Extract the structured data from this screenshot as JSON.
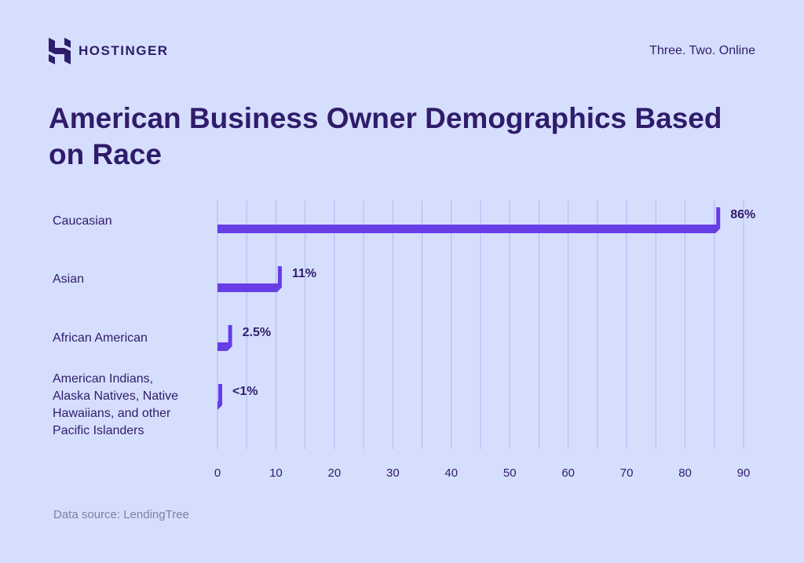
{
  "brand": {
    "name": "HOSTINGER",
    "tagline": "Three. Two. Online"
  },
  "source": "Data source: LendingTree",
  "colors": {
    "bar": "#673de6",
    "grid": "#b4b4f5",
    "text": "#2f1c6a"
  },
  "chart_data": {
    "type": "bar",
    "orientation": "horizontal",
    "title": "American Business Owner Demographics Based on Race",
    "categories": [
      "Caucasian",
      "Asian",
      "African American",
      "American Indians, Alaska Natives, Native Hawaiians, and other Pacific Islanders"
    ],
    "category_lines": [
      [
        "Caucasian"
      ],
      [
        "Asian"
      ],
      [
        "African American"
      ],
      [
        "American Indians,",
        "Alaska Natives, Native",
        "Hawaiians, and other",
        "Pacific Islanders"
      ]
    ],
    "values": [
      86,
      11,
      2.5,
      0.7
    ],
    "data_labels": [
      "86%",
      "11%",
      "2.5%",
      "<1%"
    ],
    "xlim": [
      0,
      90
    ],
    "xticks": [
      0,
      10,
      20,
      30,
      40,
      50,
      60,
      70,
      80,
      90
    ],
    "grid_step": 5,
    "grid": true,
    "xlabel": "",
    "ylabel": ""
  }
}
